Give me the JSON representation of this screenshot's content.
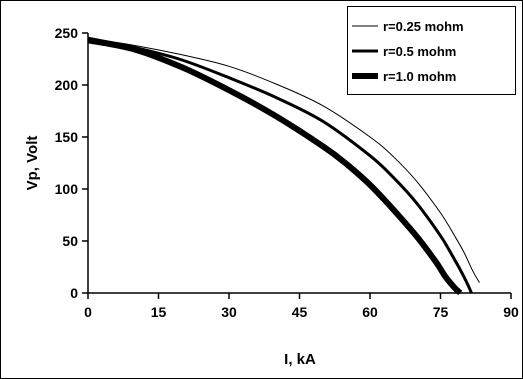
{
  "chart_data": {
    "type": "line",
    "xlabel": "I, kA",
    "ylabel": "Vp, Volt",
    "xlim": [
      0,
      90
    ],
    "ylim": [
      0,
      250
    ],
    "x_ticks": [
      "0",
      "15",
      "30",
      "45",
      "60",
      "75",
      "90"
    ],
    "y_ticks": [
      "0",
      "50",
      "100",
      "150",
      "200",
      "250"
    ],
    "grid": false,
    "legend_position": "top-right",
    "series": [
      {
        "name": "r=0.25 mohm",
        "color": "#000000",
        "x": [
          0,
          10,
          20,
          30,
          40,
          50,
          60,
          65,
          70,
          75,
          78,
          80,
          82,
          83.3
        ],
        "y": [
          245,
          238,
          229,
          218,
          201,
          180,
          150,
          131,
          107,
          77,
          55,
          39,
          20,
          10
        ]
      },
      {
        "name": "r=0.5 mohm",
        "color": "#000000",
        "x": [
          0,
          10,
          20,
          30,
          40,
          50,
          60,
          65,
          70,
          75,
          77,
          79,
          80.6,
          81.6
        ],
        "y": [
          245,
          236,
          224,
          207,
          188,
          165,
          132,
          111,
          86,
          55,
          40,
          24,
          10,
          0
        ]
      },
      {
        "name": "r=1.0 mohm",
        "color": "#000000",
        "x": [
          0,
          10,
          20,
          30,
          40,
          50,
          55,
          60,
          65,
          70,
          74,
          76,
          78,
          79.2
        ],
        "y": [
          243,
          234,
          217,
          195,
          170,
          141,
          124,
          104,
          80,
          54,
          30,
          16,
          5,
          0
        ]
      }
    ]
  }
}
